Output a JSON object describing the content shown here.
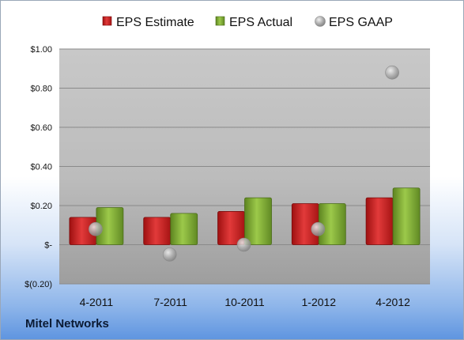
{
  "company": "Mitel Networks",
  "chart_data": {
    "type": "bar",
    "categories": [
      "4-2011",
      "7-2011",
      "10-2011",
      "1-2012",
      "4-2012"
    ],
    "series": [
      {
        "name": "EPS Estimate",
        "kind": "bar",
        "color": "#cc1f1f",
        "values": [
          0.14,
          0.14,
          0.17,
          0.21,
          0.24
        ]
      },
      {
        "name": "EPS Actual",
        "kind": "bar",
        "color": "#7ea82f",
        "values": [
          0.19,
          0.16,
          0.24,
          0.21,
          0.29
        ]
      },
      {
        "name": "EPS GAAP",
        "kind": "marker",
        "color": "#a8a8a8",
        "values": [
          0.08,
          -0.05,
          0.0,
          0.08,
          0.88
        ]
      }
    ],
    "ylim": [
      -0.2,
      1.0
    ],
    "yticks": [
      {
        "v": 1.0,
        "label": "$1.00"
      },
      {
        "v": 0.8,
        "label": "$0.80"
      },
      {
        "v": 0.6,
        "label": "$0.60"
      },
      {
        "v": 0.4,
        "label": "$0.40"
      },
      {
        "v": 0.2,
        "label": "$0.20"
      },
      {
        "v": 0.0,
        "label": "$-"
      },
      {
        "v": -0.2,
        "label": "$(0.20)"
      }
    ],
    "legend_position": "top",
    "grid": true
  }
}
